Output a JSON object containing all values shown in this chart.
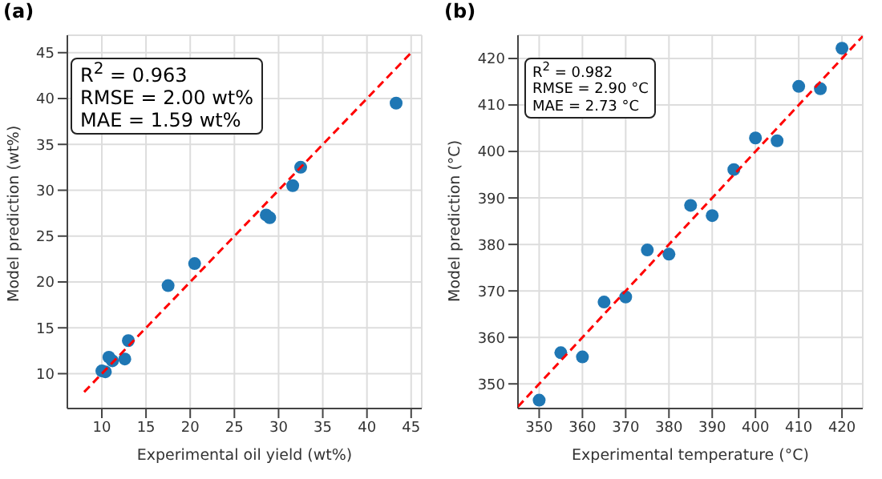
{
  "chart_data": [
    {
      "type": "scatter",
      "title": "(a)",
      "xlabel": "Experimental oil yield (wt%)",
      "ylabel": "Model prediction (wt%)",
      "xlim": [
        6.1,
        46.2
      ],
      "ylim": [
        6.2,
        46.9
      ],
      "xticks": [
        10,
        15,
        20,
        25,
        30,
        35,
        40,
        45
      ],
      "yticks": [
        10,
        15,
        20,
        25,
        30,
        35,
        40,
        45
      ],
      "grid": true,
      "marker": "circle",
      "annotations": [
        "R$^{2}$ = 0.963",
        "RMSE = 2.00 wt%",
        "MAE = 1.59 wt%"
      ],
      "series": [
        {
          "type": "scatter",
          "color": "#1f77b4",
          "x": [
            10,
            10.4,
            10.8,
            11.2,
            12.6,
            13,
            17.5,
            20.5,
            28.6,
            29,
            31.6,
            32.5,
            43.3
          ],
          "values": [
            10.3,
            10.2,
            11.8,
            11.4,
            11.6,
            13.6,
            19.6,
            22,
            27.3,
            27,
            30.5,
            32.5,
            39.5
          ]
        },
        {
          "type": "line",
          "color": "#ff0000",
          "line_style": "dashed",
          "marker": "none",
          "x": [
            8,
            45
          ],
          "values": [
            8,
            45
          ]
        }
      ]
    },
    {
      "type": "scatter",
      "title": "(b)",
      "xlabel": "Experimental temperature (°C)",
      "ylabel": "Model prediction (°C)",
      "xlim": [
        345.1,
        424.8
      ],
      "ylim": [
        344.7,
        425
      ],
      "xticks": [
        350,
        360,
        370,
        380,
        390,
        400,
        410,
        420
      ],
      "yticks": [
        350,
        360,
        370,
        380,
        390,
        400,
        410,
        420
      ],
      "grid": true,
      "marker": "circle",
      "annotations": [
        "R$^{2}$ = 0.982",
        "RMSE = 2.90 °C",
        "MAE = 2.73 °C"
      ],
      "series": [
        {
          "type": "scatter",
          "color": "#1f77b4",
          "x": [
            350,
            355,
            360,
            365,
            370,
            375,
            380,
            385,
            390,
            395,
            400,
            405,
            410,
            415,
            420
          ],
          "values": [
            346.5,
            356.7,
            355.8,
            367.6,
            368.7,
            378.8,
            377.9,
            388.4,
            386.2,
            396.1,
            402.9,
            402.3,
            414,
            413.5,
            422.2
          ]
        },
        {
          "type": "line",
          "color": "#ff0000",
          "line_style": "dashed",
          "marker": "none",
          "x": [
            345.1,
            424.8
          ],
          "values": [
            345.1,
            424.8
          ]
        }
      ]
    }
  ]
}
